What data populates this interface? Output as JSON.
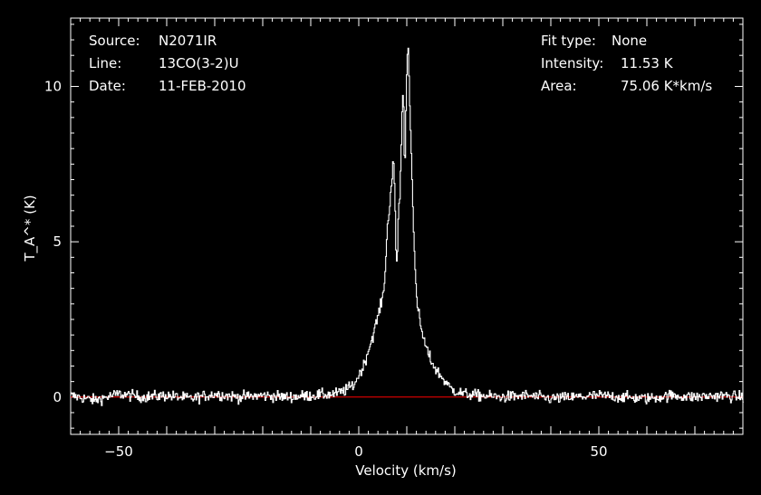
{
  "header": {
    "left": [
      {
        "label": "Source:",
        "value": "N2071IR"
      },
      {
        "label": "Line:",
        "value": "13CO(3-2)U"
      },
      {
        "label": "Date:",
        "value": "11-FEB-2010"
      }
    ],
    "right": [
      {
        "label": "Fit type:",
        "value": "None"
      },
      {
        "label": "Intensity:",
        "value": "11.53 K"
      },
      {
        "label": "Area:",
        "value": "75.06 K*km/s"
      }
    ]
  },
  "chart_data": {
    "type": "line",
    "xlabel": "Velocity (km/s)",
    "ylabel": "T_A^* (K)",
    "xlim": [
      -60,
      80
    ],
    "ylim": [
      -1.2,
      12.2
    ],
    "xticks": [
      -50,
      0,
      50
    ],
    "yticks": [
      0,
      5,
      10
    ],
    "baseline": 0,
    "colors": {
      "spectrum": "#ffffff",
      "baseline": "#ff0000",
      "axes": "#ffffff",
      "background": "#000000"
    },
    "series": [
      {
        "x": [
          -60,
          -55,
          -50,
          -45,
          -40,
          -35,
          -30,
          -25,
          -20,
          -15,
          -10,
          -5,
          -3,
          -1,
          0,
          1,
          2,
          3,
          4,
          5,
          5.5,
          6,
          6.5,
          7,
          7.2,
          7.5,
          7.8,
          8,
          8.3,
          8.6,
          9,
          9.3,
          9.6,
          10,
          10.3,
          10.6,
          11,
          11.5,
          12,
          13,
          14,
          15,
          16,
          17,
          18,
          19,
          20,
          22,
          25,
          30,
          35,
          40,
          45,
          50,
          55,
          60,
          65,
          70,
          75,
          80
        ],
        "y": [
          0.05,
          -0.1,
          0.1,
          0.0,
          0.05,
          -0.05,
          0.1,
          0.0,
          0.05,
          0.0,
          0.05,
          0.1,
          0.2,
          0.4,
          0.7,
          1.0,
          1.5,
          2.0,
          2.6,
          3.2,
          4.0,
          5.5,
          6.3,
          7.2,
          7.8,
          6.5,
          4.5,
          4.3,
          6.0,
          6.5,
          9.0,
          10.0,
          7.0,
          10.5,
          11.5,
          9.5,
          7.8,
          5.0,
          3.2,
          2.2,
          1.6,
          1.2,
          0.9,
          0.7,
          0.5,
          0.3,
          0.2,
          0.1,
          0.05,
          0.0,
          0.05,
          -0.05,
          0.0,
          0.05,
          0.0,
          -0.05,
          0.05,
          0.0,
          0.05,
          0.0
        ]
      }
    ]
  }
}
